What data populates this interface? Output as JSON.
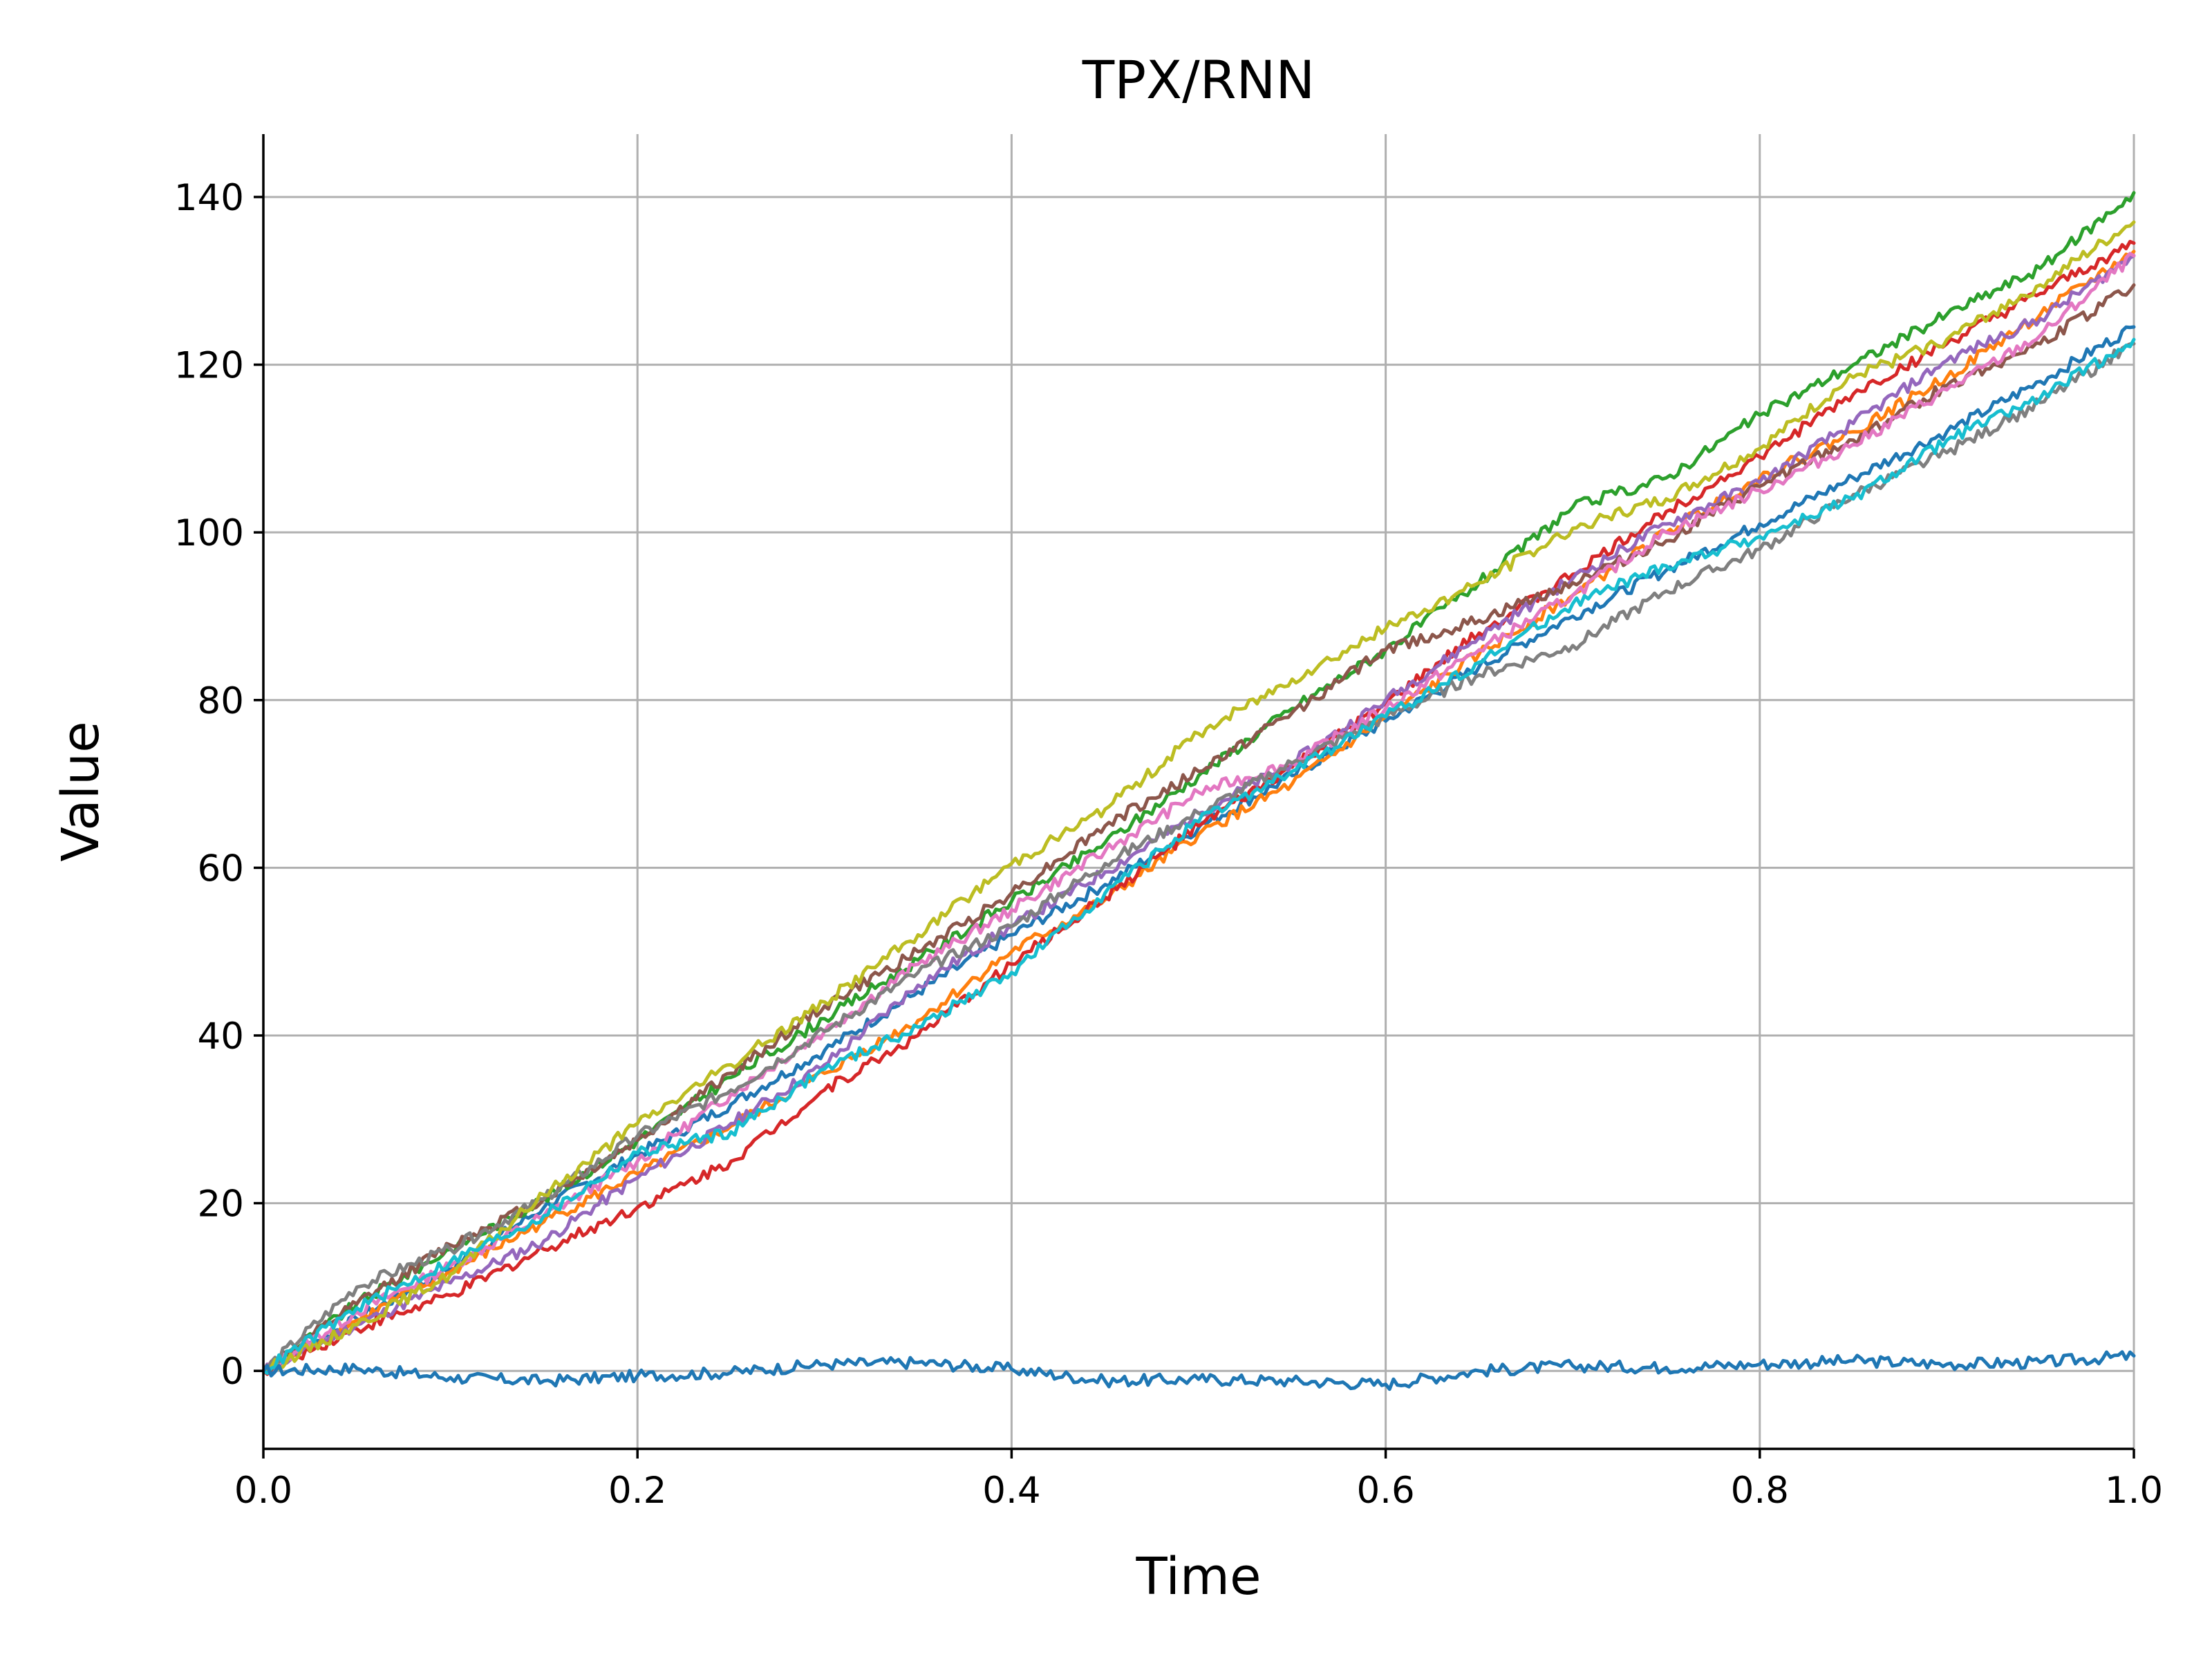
{
  "chart_data": {
    "type": "line",
    "title": "TPX/RNN",
    "xlabel": "Time",
    "ylabel": "Value",
    "xlim": [
      0.0,
      1.0
    ],
    "ylim": [
      -9.3,
      147.5
    ],
    "x_ticks": [
      0.0,
      0.2,
      0.4,
      0.6,
      0.8,
      1.0
    ],
    "x_tick_labels": [
      "0.0",
      "0.2",
      "0.4",
      "0.6",
      "0.8",
      "1.0"
    ],
    "y_ticks": [
      0,
      20,
      40,
      60,
      80,
      100,
      120,
      140
    ],
    "y_tick_labels": [
      "0",
      "20",
      "40",
      "60",
      "80",
      "100",
      "120",
      "140"
    ],
    "grid": true,
    "legend": "none",
    "spines": [
      "left",
      "bottom"
    ],
    "x": [
      0.0,
      0.05,
      0.1,
      0.15,
      0.2,
      0.25,
      0.3,
      0.35,
      0.4,
      0.45,
      0.5,
      0.55,
      0.6,
      0.65,
      0.7,
      0.75,
      0.8,
      0.85,
      0.9,
      0.95,
      1.0
    ],
    "series": [
      {
        "color": "#1f77b4",
        "values": [
          0,
          6.2,
          12.2,
          19.5,
          25.8,
          31.8,
          38.2,
          45.2,
          52.0,
          58.0,
          64.8,
          71.0,
          77.5,
          84.0,
          90.0,
          95.5,
          101.0,
          106.5,
          112.0,
          118.0,
          124.5
        ]
      },
      {
        "color": "#ff7f0e",
        "values": [
          0,
          6.0,
          11.8,
          17.8,
          23.5,
          29.2,
          35.5,
          41.8,
          50.0,
          56.2,
          64.0,
          70.0,
          78.0,
          85.5,
          92.5,
          100.0,
          106.5,
          112.0,
          118.5,
          126.0,
          133.5
        ]
      },
      {
        "color": "#2ca02c",
        "values": [
          0,
          8.0,
          14.5,
          20.5,
          27.5,
          35.0,
          42.0,
          49.0,
          56.0,
          63.0,
          71.0,
          79.0,
          86.0,
          94.0,
          103.0,
          106.5,
          114.0,
          120.0,
          126.0,
          131.5,
          140.5
        ]
      },
      {
        "color": "#d62728",
        "values": [
          0,
          5.0,
          9.0,
          14.5,
          19.5,
          25.0,
          33.5,
          40.0,
          48.5,
          56.5,
          65.0,
          72.0,
          79.5,
          88.0,
          95.0,
          102.5,
          109.0,
          116.5,
          122.5,
          128.5,
          134.5
        ]
      },
      {
        "color": "#9467bd",
        "values": [
          0,
          5.5,
          10.5,
          15.5,
          23.0,
          29.5,
          36.5,
          46.0,
          53.0,
          59.5,
          66.5,
          72.5,
          80.0,
          87.5,
          94.5,
          101.0,
          106.0,
          113.0,
          120.5,
          125.5,
          133.0
        ]
      },
      {
        "color": "#8c564b",
        "values": [
          0,
          8.0,
          15.0,
          20.5,
          27.5,
          35.5,
          43.5,
          50.0,
          57.0,
          65.0,
          71.5,
          78.5,
          86.0,
          89.5,
          94.0,
          99.0,
          105.5,
          111.0,
          117.5,
          122.5,
          129.5
        ]
      },
      {
        "color": "#e377c2",
        "values": [
          0,
          7.0,
          12.5,
          18.5,
          25.0,
          33.0,
          40.5,
          48.5,
          55.0,
          62.0,
          69.0,
          72.5,
          79.0,
          86.0,
          92.5,
          100.0,
          105.0,
          110.5,
          117.0,
          123.5,
          133.0
        ]
      },
      {
        "color": "#7f7f7f",
        "values": [
          0,
          10.0,
          14.5,
          20.5,
          28.0,
          33.5,
          40.5,
          47.5,
          53.0,
          60.5,
          66.5,
          72.5,
          78.0,
          83.0,
          86.5,
          93.0,
          98.0,
          104.5,
          109.5,
          115.5,
          122.5
        ]
      },
      {
        "color": "#bcbd22",
        "values": [
          0,
          5.5,
          11.5,
          21.0,
          29.5,
          36.5,
          44.0,
          52.0,
          60.5,
          67.0,
          76.0,
          82.5,
          88.5,
          94.0,
          100.5,
          104.0,
          110.0,
          118.5,
          123.0,
          129.5,
          137.0
        ]
      },
      {
        "color": "#17becf",
        "values": [
          0,
          7.5,
          13.0,
          18.5,
          26.0,
          28.5,
          36.0,
          41.0,
          47.5,
          57.0,
          65.5,
          71.5,
          78.0,
          84.5,
          91.5,
          96.0,
          99.5,
          104.0,
          111.0,
          116.0,
          123.0
        ]
      },
      {
        "color": "#1f77b4",
        "values": [
          0,
          0.3,
          -0.8,
          -1.2,
          -0.6,
          -0.2,
          0.8,
          1.0,
          0.2,
          -1.2,
          -1.0,
          -1.2,
          -1.6,
          0.0,
          0.6,
          0.4,
          0.8,
          1.2,
          0.8,
          1.0,
          1.8
        ]
      }
    ]
  }
}
